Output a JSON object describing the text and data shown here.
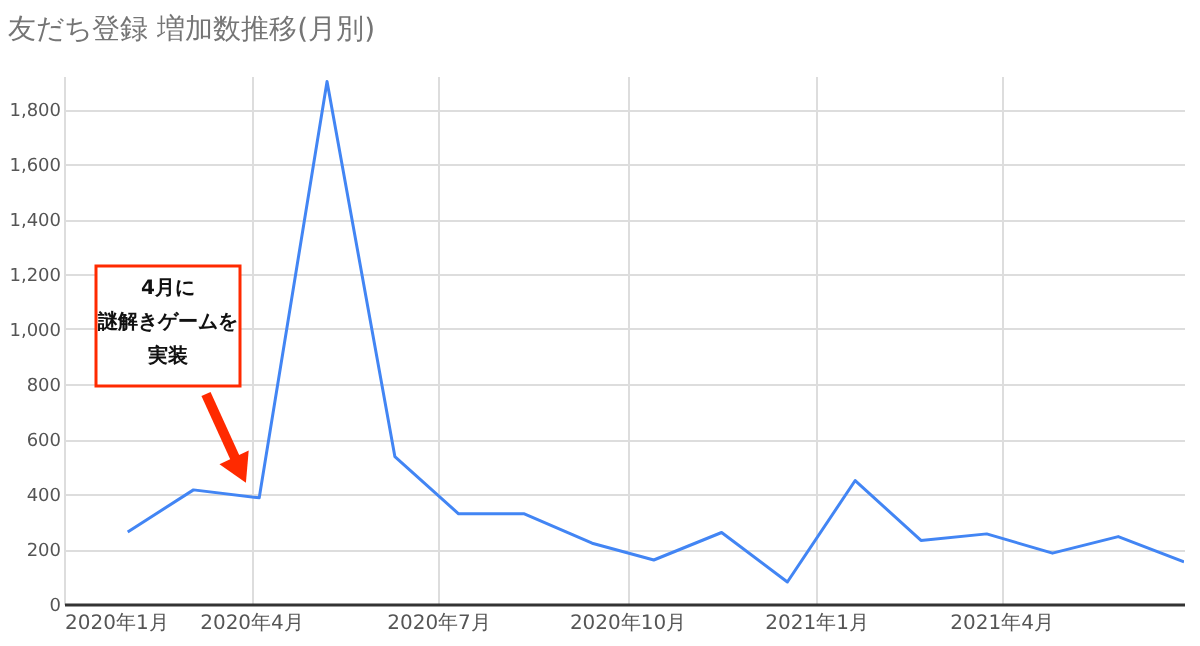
{
  "chart_data": {
    "type": "line",
    "title": "友だち登録 増加数推移(月別)",
    "x": [
      "2020-02-01",
      "2020-03-04",
      "2020-04-05",
      "2020-05-08",
      "2020-06-10",
      "2020-07-11",
      "2020-08-12",
      "2020-09-14",
      "2020-10-14",
      "2020-11-16",
      "2020-12-18",
      "2021-01-20",
      "2021-02-21",
      "2021-03-25",
      "2021-04-26",
      "2021-05-28",
      "2021-06-29"
    ],
    "series": [
      {
        "color": "#4285f4",
        "values": [
          262,
          415,
          386,
          1900,
          536,
          328,
          328,
          221,
          160,
          260,
          80,
          449,
          231,
          255,
          185,
          245,
          153
        ]
      }
    ],
    "xlim": [
      "2020-01-01",
      "2021-06-29"
    ],
    "xticks": [
      {
        "value": "2020-01-01",
        "label": "2020年1月"
      },
      {
        "value": "2020-04-01",
        "label": "2020年4月"
      },
      {
        "value": "2020-07-01",
        "label": "2020年7月"
      },
      {
        "value": "2020-10-01",
        "label": "2020年10月"
      },
      {
        "value": "2021-01-01",
        "label": "2021年1月"
      },
      {
        "value": "2021-04-01",
        "label": "2021年4月"
      }
    ],
    "ylim": [
      0,
      1920
    ],
    "yticks": [
      0,
      200,
      400,
      600,
      800,
      {
        "value": 1000,
        "label": "1,000"
      },
      {
        "value": 1200,
        "label": "1,200"
      },
      {
        "value": 1400,
        "label": "1,400"
      },
      {
        "value": 1600,
        "label": "1,600"
      },
      {
        "value": 1800,
        "label": "1,800"
      }
    ],
    "grid": true,
    "marker": "none",
    "line_style": "solid",
    "annotations": [
      "4月に",
      "謎解きゲームを",
      "実装"
    ]
  }
}
